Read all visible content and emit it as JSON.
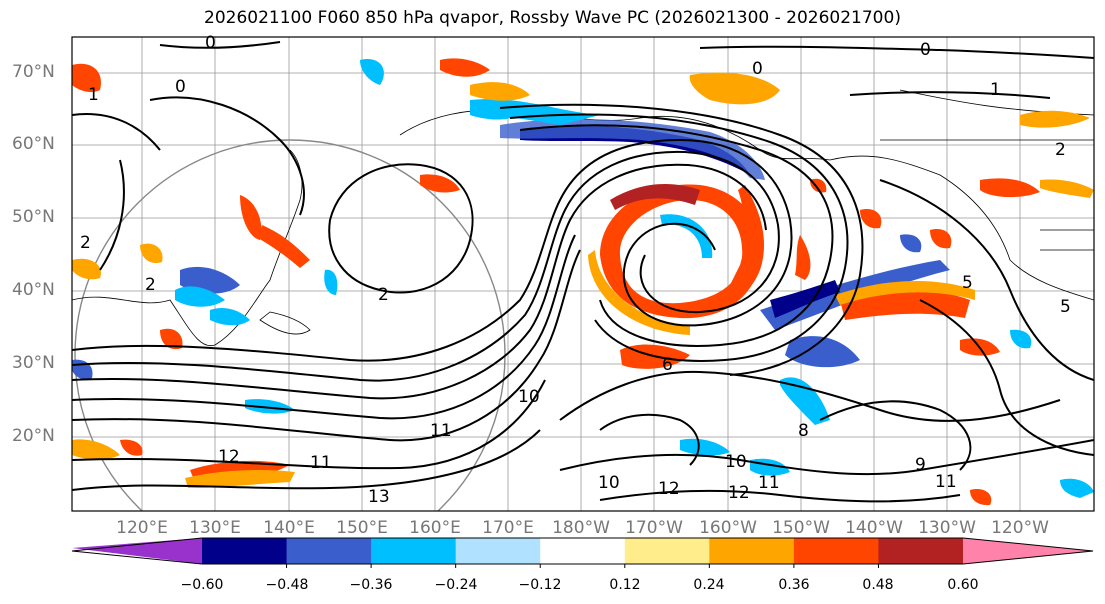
{
  "title": "2026021100 F060 850 hPa qvapor, Rossby Wave PC (2026021300 - 2026021700)",
  "map": {
    "lat_labels": [
      "70°N",
      "60°N",
      "50°N",
      "40°N",
      "30°N",
      "20°N"
    ],
    "lon_labels": [
      "120°E",
      "130°E",
      "140°E",
      "150°E",
      "160°E",
      "170°E",
      "180°W",
      "170°W",
      "160°W",
      "150°W",
      "140°W",
      "130°W",
      "120°W"
    ],
    "contour_labels": [
      "0",
      "0",
      "0",
      "0",
      "1",
      "1",
      "2",
      "2",
      "2",
      "2",
      "6",
      "8",
      "9",
      "10",
      "10",
      "10",
      "11",
      "11",
      "11",
      "11",
      "12",
      "12",
      "12",
      "13",
      "5",
      "5"
    ]
  },
  "colorbar": {
    "ticks": [
      "−0.60",
      "−0.48",
      "−0.36",
      "−0.24",
      "−0.12",
      "0.12",
      "0.24",
      "0.36",
      "0.48",
      "0.60"
    ],
    "colors": [
      "#9932cc",
      "#00008b",
      "#3a5fcd",
      "#00bfff",
      "#b0e2ff",
      "#ffffff",
      "#ffec8b",
      "#ffa500",
      "#ff4500",
      "#b22222",
      "#ff82ab"
    ]
  }
}
